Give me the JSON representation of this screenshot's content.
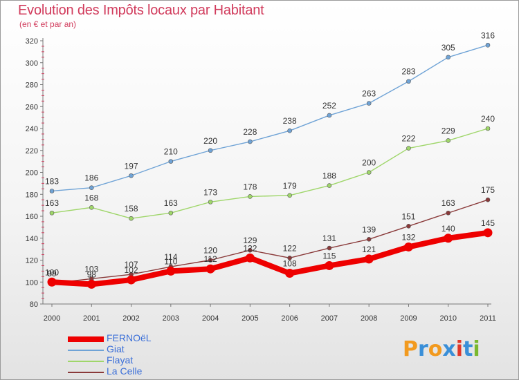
{
  "title": "Evolution des Impôts locaux par Habitant",
  "subtitle": "(en € et par an)",
  "logo": {
    "letters": [
      "P",
      "r",
      "o",
      "x",
      "i",
      "t",
      "i"
    ],
    "colors": [
      "#f29a1f",
      "#3a8fd8",
      "#f29a1f",
      "#3a8fd8",
      "#e0382b",
      "#3a8fd8",
      "#7ab82e"
    ]
  },
  "chart_data": {
    "type": "line",
    "x": [
      "2000",
      "2001",
      "2002",
      "2003",
      "2004",
      "2005",
      "2006",
      "2007",
      "2008",
      "2009",
      "2010",
      "2011"
    ],
    "ylim": [
      80,
      320
    ],
    "yticks": [
      "80",
      "100",
      "120",
      "140",
      "160",
      "180",
      "200",
      "220",
      "240",
      "260",
      "280",
      "300",
      "320"
    ],
    "grid": false,
    "legend_position": "bottom-left",
    "series": [
      {
        "name": "FERNOëL",
        "color": "#ee0000",
        "values": [
          100,
          98,
          102,
          110,
          112,
          122,
          108,
          115,
          121,
          132,
          140,
          145
        ]
      },
      {
        "name": "Giat",
        "color": "#6fa3d6",
        "values": [
          183,
          186,
          197,
          210,
          220,
          228,
          238,
          252,
          263,
          283,
          305,
          316
        ]
      },
      {
        "name": "Flayat",
        "color": "#9fd66a",
        "values": [
          163,
          168,
          158,
          163,
          173,
          178,
          179,
          188,
          200,
          222,
          229,
          240
        ]
      },
      {
        "name": "La Celle",
        "color": "#8a3a3a",
        "values": [
          99,
          103,
          107,
          114,
          120,
          129,
          122,
          131,
          139,
          151,
          163,
          175
        ]
      }
    ]
  }
}
